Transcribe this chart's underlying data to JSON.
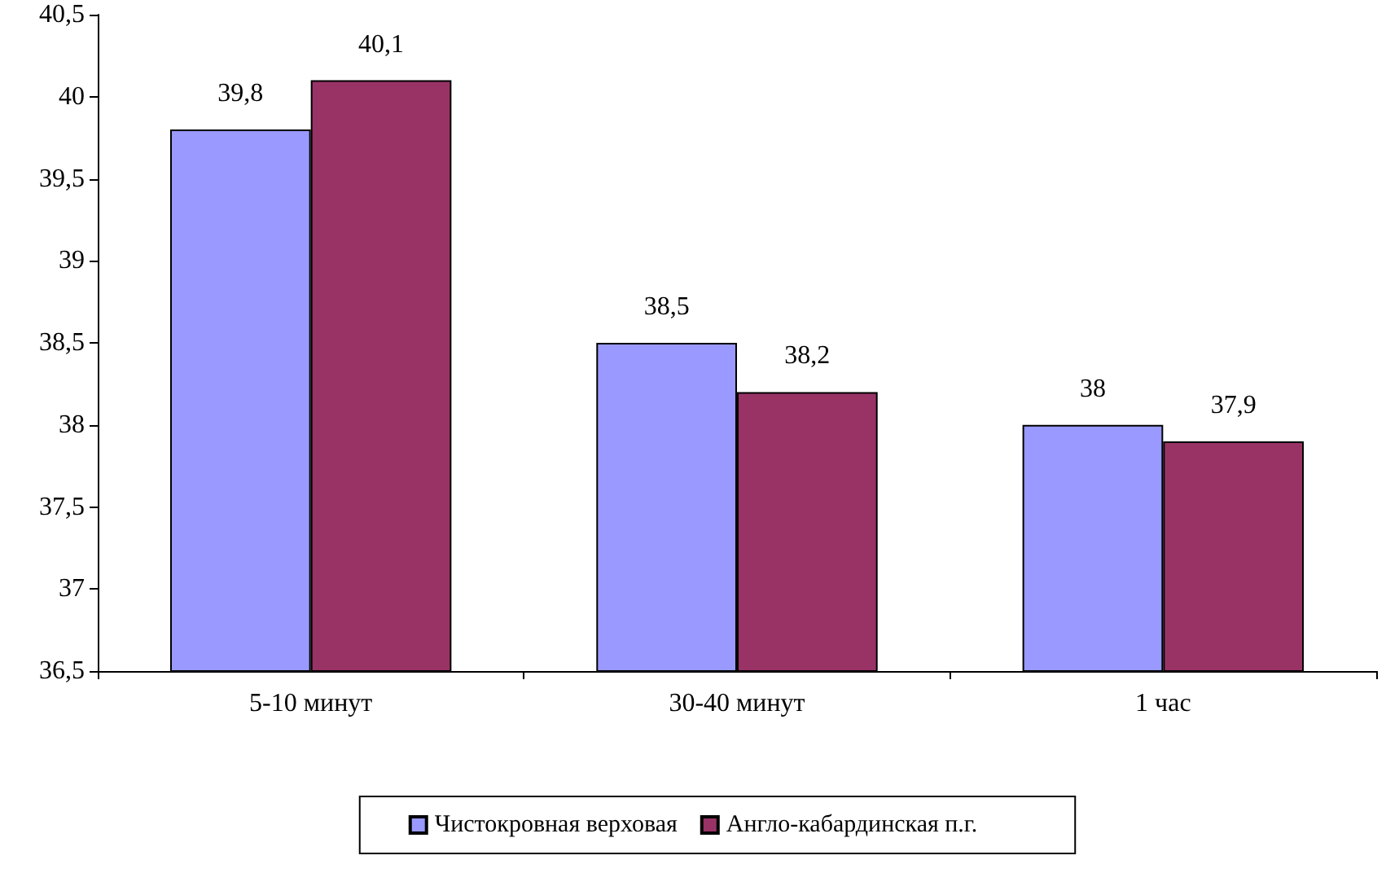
{
  "chart_data": {
    "type": "bar",
    "categories": [
      "5-10 минут",
      "30-40 минут",
      "1 час"
    ],
    "series": [
      {
        "name": "Чистокровная верховая",
        "color": "#9999ff",
        "values": [
          39.8,
          38.5,
          38.0
        ],
        "value_labels": [
          "39,8",
          "38,5",
          "38"
        ]
      },
      {
        "name": "Англо-кабардинская п.г.",
        "color": "#993366",
        "values": [
          40.1,
          38.2,
          37.9
        ],
        "value_labels": [
          "40,1",
          "38,2",
          "37,9"
        ]
      }
    ],
    "ylim": [
      36.5,
      40.5
    ],
    "yticks": [
      {
        "value": 36.5,
        "label": "36,5"
      },
      {
        "value": 37,
        "label": "37"
      },
      {
        "value": 37.5,
        "label": "37,5"
      },
      {
        "value": 38,
        "label": "38"
      },
      {
        "value": 38.5,
        "label": "38,5"
      },
      {
        "value": 39,
        "label": "39"
      },
      {
        "value": 39.5,
        "label": "39,5"
      },
      {
        "value": 40,
        "label": "40"
      },
      {
        "value": 40.5,
        "label": "40,5"
      }
    ],
    "grid": false,
    "legend": "bottom"
  }
}
